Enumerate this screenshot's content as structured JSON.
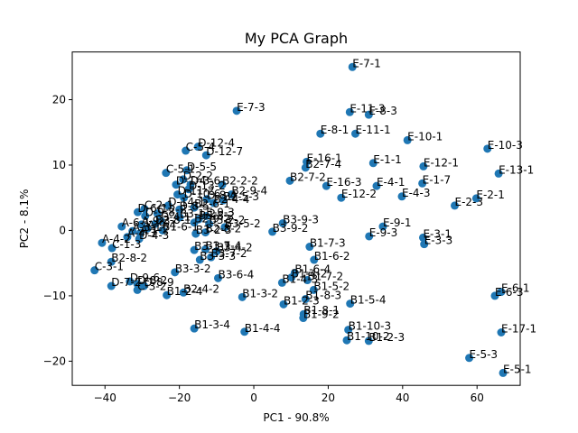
{
  "chart_data": {
    "type": "scatter",
    "title": "My PCA Graph",
    "xlabel": "PC1 - 90.8%",
    "ylabel": "PC2 - 8.1%",
    "xlim": [
      -48.8,
      71.6
    ],
    "ylim": [
      -23.7,
      27.3
    ],
    "xticks": [
      -40,
      -20,
      0,
      20,
      40,
      60
    ],
    "yticks": [
      -20,
      -10,
      0,
      10,
      20
    ],
    "marker_color": "#1f77b4",
    "points": [
      {
        "label": "E-7-1",
        "x": 26.5,
        "y": 25.0
      },
      {
        "label": "E-7-3",
        "x": -4.6,
        "y": 18.3
      },
      {
        "label": "E-11-3",
        "x": 25.8,
        "y": 18.1
      },
      {
        "label": "E-8-3",
        "x": 30.9,
        "y": 17.7
      },
      {
        "label": "E-8-1",
        "x": 17.9,
        "y": 14.8
      },
      {
        "label": "E-11-1",
        "x": 27.3,
        "y": 14.8
      },
      {
        "label": "E-10-1",
        "x": 41.3,
        "y": 13.8
      },
      {
        "label": "E-10-3",
        "x": 62.8,
        "y": 12.5
      },
      {
        "label": "D-12-4",
        "x": -15.0,
        "y": 12.8
      },
      {
        "label": "C-5-4",
        "x": -18.3,
        "y": 12.2
      },
      {
        "label": "D-12-7",
        "x": -12.8,
        "y": 11.5
      },
      {
        "label": "D-5-5",
        "x": -18.0,
        "y": 9.2
      },
      {
        "label": "E-16-1",
        "x": 14.2,
        "y": 10.5
      },
      {
        "label": "B2-7-4",
        "x": 13.9,
        "y": 9.6
      },
      {
        "label": "E-1-1",
        "x": 32.1,
        "y": 10.3
      },
      {
        "label": "E-12-1",
        "x": 45.6,
        "y": 9.8
      },
      {
        "label": "E-13-1",
        "x": 65.8,
        "y": 8.7
      },
      {
        "label": "C-5-1",
        "x": -23.6,
        "y": 8.8
      },
      {
        "label": "D-2-2",
        "x": -19.0,
        "y": 7.8
      },
      {
        "label": "D-3-6",
        "x": -17.0,
        "y": 7.0
      },
      {
        "label": "B2-2-2",
        "x": -8.5,
        "y": 7.0
      },
      {
        "label": "B2-7-2",
        "x": 9.7,
        "y": 7.6
      },
      {
        "label": "E-1-7",
        "x": 45.3,
        "y": 7.2
      },
      {
        "label": "E-16-3",
        "x": 19.5,
        "y": 6.8
      },
      {
        "label": "E-4-1",
        "x": 33.0,
        "y": 6.8
      },
      {
        "label": "B2-9-4",
        "x": -6.0,
        "y": 5.5
      },
      {
        "label": "D-1-4",
        "x": -20.9,
        "y": 7.0
      },
      {
        "label": "D-13-2",
        "x": -17.5,
        "y": 6.3
      },
      {
        "label": "E-12-2",
        "x": 23.5,
        "y": 5.0
      },
      {
        "label": "E-4-3",
        "x": 39.8,
        "y": 5.2
      },
      {
        "label": "E-2-1",
        "x": 59.8,
        "y": 4.9
      },
      {
        "label": "E-2-3",
        "x": 54.0,
        "y": 3.8
      },
      {
        "label": "D-11-2",
        "x": -20.5,
        "y": 5.5
      },
      {
        "label": "D-10-6",
        "x": -18.8,
        "y": 5.0
      },
      {
        "label": "D-8-4",
        "x": -12.6,
        "y": 4.8
      },
      {
        "label": "B2-5-3",
        "x": -8.2,
        "y": 4.6
      },
      {
        "label": "B2-4-4",
        "x": -10.8,
        "y": 4.2
      },
      {
        "label": "C-2-1",
        "x": -29.4,
        "y": 3.3
      },
      {
        "label": "D-14-1",
        "x": -23.0,
        "y": 3.8
      },
      {
        "label": "B2-6-1",
        "x": -16.0,
        "y": 3.5
      },
      {
        "label": "D-8-5",
        "x": -20.0,
        "y": 3.2
      },
      {
        "label": "C-2-2",
        "x": -25.9,
        "y": 2.6
      },
      {
        "label": "D-9-8",
        "x": -29.2,
        "y": 2.2
      },
      {
        "label": "E-9-3",
        "x": -12.8,
        "y": 2.2
      },
      {
        "label": "D-6-1",
        "x": -31.2,
        "y": 2.8
      },
      {
        "label": "B3-1-2",
        "x": -19.9,
        "y": 2.0
      },
      {
        "label": "B3-8-2",
        "x": -14.8,
        "y": 1.7
      },
      {
        "label": "B2-8-1",
        "x": -26.5,
        "y": 1.0
      },
      {
        "label": "A-6-1",
        "x": -35.5,
        "y": 0.6
      },
      {
        "label": "A-9-3",
        "x": -30.2,
        "y": 0.9
      },
      {
        "label": "A-9-4",
        "x": -28.6,
        "y": 0.3
      },
      {
        "label": "D-4-1",
        "x": -25.0,
        "y": 1.5
      },
      {
        "label": "B2-9-2",
        "x": -16.0,
        "y": 1.2
      },
      {
        "label": "B3-2-2",
        "x": -12.0,
        "y": 1.0
      },
      {
        "label": "B3-5-2",
        "x": -7.8,
        "y": 0.5
      },
      {
        "label": "B3-9-3",
        "x": 7.8,
        "y": 1.1
      },
      {
        "label": "E-9-1",
        "x": 34.7,
        "y": 0.6
      },
      {
        "label": "A-3-1",
        "x": -32.6,
        "y": -0.1
      },
      {
        "label": "A-1-2",
        "x": -30.5,
        "y": -0.4
      },
      {
        "label": "B1-6-1",
        "x": -24.5,
        "y": 0.0
      },
      {
        "label": "B2-8-2",
        "x": -13.0,
        "y": -0.3
      },
      {
        "label": "B3-2-3",
        "x": -15.6,
        "y": -0.5
      },
      {
        "label": "B3-9-2",
        "x": 5.0,
        "y": -0.2
      },
      {
        "label": "E-9-3",
        "x": 31.0,
        "y": -0.9
      },
      {
        "label": "E-3-1",
        "x": 45.5,
        "y": -1.1
      },
      {
        "label": "A-4-3",
        "x": -34.0,
        "y": -1.0
      },
      {
        "label": "D-4-3",
        "x": -30.8,
        "y": -1.3
      },
      {
        "label": "E-3-3",
        "x": 45.8,
        "y": -2.1
      },
      {
        "label": "A-4-2",
        "x": -40.8,
        "y": -1.9
      },
      {
        "label": "C-1-3",
        "x": -38.1,
        "y": -2.7
      },
      {
        "label": "B3-1-3",
        "x": -16.0,
        "y": -3.0
      },
      {
        "label": "B3-7-4",
        "x": -13.0,
        "y": -2.9
      },
      {
        "label": "B3-4-2",
        "x": -10.0,
        "y": -3.2
      },
      {
        "label": "B1-7-3",
        "x": 15.0,
        "y": -2.5
      },
      {
        "label": "B3-7-2",
        "x": -11.5,
        "y": -4.1
      },
      {
        "label": "B3-3-3",
        "x": -14.5,
        "y": -4.5
      },
      {
        "label": "B1-6-2",
        "x": 16.2,
        "y": -4.5
      },
      {
        "label": "B2-8-2",
        "x": -38.3,
        "y": -4.8
      },
      {
        "label": "C-3-1",
        "x": -42.8,
        "y": -6.1
      },
      {
        "label": "B3-3-2",
        "x": -21.2,
        "y": -6.4
      },
      {
        "label": "B1-6-4",
        "x": 11.0,
        "y": -6.5
      },
      {
        "label": "B3-6-4",
        "x": -9.6,
        "y": -7.3
      },
      {
        "label": "B1-4-2",
        "x": 10.1,
        "y": -7.2
      },
      {
        "label": "B1-7-2",
        "x": 14.4,
        "y": -7.6
      },
      {
        "label": "B1-4-3",
        "x": 7.6,
        "y": -8.0
      },
      {
        "label": "D-9-6",
        "x": -33.3,
        "y": -7.8
      },
      {
        "label": "D-7-2",
        "x": -38.3,
        "y": -8.5
      },
      {
        "label": "D-8-2",
        "x": -31.3,
        "y": -8.2
      },
      {
        "label": "D-8-9",
        "x": -29.5,
        "y": -8.5
      },
      {
        "label": "C-3-2",
        "x": -31.3,
        "y": -9.1
      },
      {
        "label": "B1-2-4",
        "x": -23.4,
        "y": -9.9
      },
      {
        "label": "B2-4-2",
        "x": -18.9,
        "y": -9.5
      },
      {
        "label": "B1-5-2",
        "x": 16.1,
        "y": -9.1
      },
      {
        "label": "B1-3-2",
        "x": -3.1,
        "y": -10.2
      },
      {
        "label": "B1-8-3",
        "x": 13.9,
        "y": -10.5
      },
      {
        "label": "B1-5-4",
        "x": 25.9,
        "y": -11.2
      },
      {
        "label": "B1-2-3",
        "x": 8.0,
        "y": -11.3
      },
      {
        "label": "B1-8-1",
        "x": 13.4,
        "y": -12.8
      },
      {
        "label": "B1-9-2",
        "x": 13.3,
        "y": -13.4
      },
      {
        "label": "E-6-1",
        "x": 66.5,
        "y": -9.4
      },
      {
        "label": "E-6-3",
        "x": 64.8,
        "y": -10.0
      },
      {
        "label": "B1-3-4",
        "x": -16.0,
        "y": -15.0
      },
      {
        "label": "B1-4-4",
        "x": -2.5,
        "y": -15.5
      },
      {
        "label": "B1-10-3",
        "x": 25.4,
        "y": -15.2
      },
      {
        "label": "E-17-1",
        "x": 66.5,
        "y": -15.6
      },
      {
        "label": "B1-10-2",
        "x": 25.0,
        "y": -16.8
      },
      {
        "label": "B1-2-3",
        "x": 30.9,
        "y": -16.9
      },
      {
        "label": "E-5-3",
        "x": 57.9,
        "y": -19.5
      },
      {
        "label": "E-5-1",
        "x": 67.0,
        "y": -21.8
      }
    ]
  }
}
